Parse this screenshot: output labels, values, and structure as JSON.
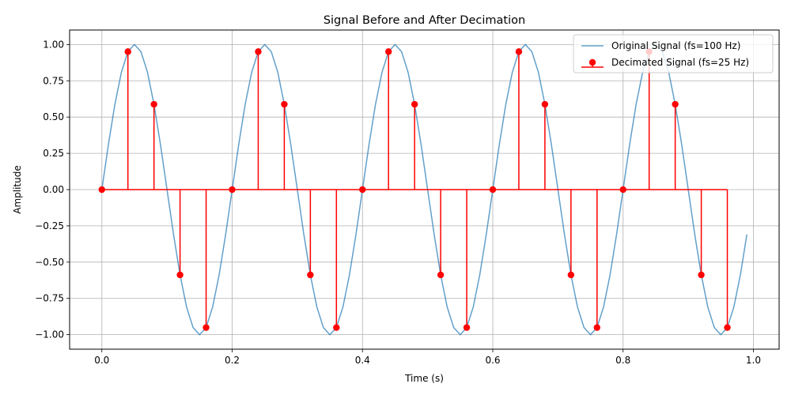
{
  "chart_data": {
    "type": "line",
    "title": "Signal Before and After Decimation",
    "xlabel": "Time (s)",
    "ylabel": "Amplitude",
    "xlim": [
      -0.0495,
      1.0395
    ],
    "ylim": [
      -1.1,
      1.1
    ],
    "x_ticks": [
      0.0,
      0.2,
      0.4,
      0.6,
      0.8,
      1.0
    ],
    "x_tick_labels": [
      "0.0",
      "0.2",
      "0.4",
      "0.6",
      "0.8",
      "1.0"
    ],
    "y_ticks": [
      -1.0,
      -0.75,
      -0.5,
      -0.25,
      0.0,
      0.25,
      0.5,
      0.75,
      1.0
    ],
    "y_tick_labels": [
      "−1.00",
      "−0.75",
      "−0.50",
      "−0.25",
      "0.00",
      "0.25",
      "0.50",
      "0.75",
      "1.00"
    ],
    "grid": true,
    "legend_position": "top-right",
    "series": [
      {
        "name": "Original Signal (fs=100 Hz)",
        "kind": "line",
        "color": "#1f77b4",
        "x": [
          0.0,
          0.01,
          0.02,
          0.03,
          0.04,
          0.05,
          0.06,
          0.07,
          0.08,
          0.09,
          0.1,
          0.11,
          0.12,
          0.13,
          0.14,
          0.15,
          0.16,
          0.17,
          0.18,
          0.19,
          0.2,
          0.21,
          0.22,
          0.23,
          0.24,
          0.25,
          0.26,
          0.27,
          0.28,
          0.29,
          0.3,
          0.31,
          0.32,
          0.33,
          0.34,
          0.35,
          0.36,
          0.37,
          0.38,
          0.39,
          0.4,
          0.41,
          0.42,
          0.43,
          0.44,
          0.45,
          0.46,
          0.47,
          0.48,
          0.49,
          0.5,
          0.51,
          0.52,
          0.53,
          0.54,
          0.55,
          0.56,
          0.57,
          0.58,
          0.59,
          0.6,
          0.61,
          0.62,
          0.63,
          0.64,
          0.65,
          0.66,
          0.67,
          0.68,
          0.69,
          0.7,
          0.71,
          0.72,
          0.73,
          0.74,
          0.75,
          0.76,
          0.77,
          0.78,
          0.79,
          0.8,
          0.81,
          0.82,
          0.83,
          0.84,
          0.85,
          0.86,
          0.87,
          0.88,
          0.89,
          0.9,
          0.91,
          0.92,
          0.93,
          0.94,
          0.95,
          0.96,
          0.97,
          0.98,
          0.99
        ],
        "y": [
          0.0,
          0.309,
          0.588,
          0.809,
          0.951,
          1.0,
          0.951,
          0.809,
          0.588,
          0.309,
          0.0,
          -0.309,
          -0.588,
          -0.809,
          -0.951,
          -1.0,
          -0.951,
          -0.809,
          -0.588,
          -0.309,
          0.0,
          0.309,
          0.588,
          0.809,
          0.951,
          1.0,
          0.951,
          0.809,
          0.588,
          0.309,
          0.0,
          -0.309,
          -0.588,
          -0.809,
          -0.951,
          -1.0,
          -0.951,
          -0.809,
          -0.588,
          -0.309,
          0.0,
          0.309,
          0.588,
          0.809,
          0.951,
          1.0,
          0.951,
          0.809,
          0.588,
          0.309,
          0.0,
          -0.309,
          -0.588,
          -0.809,
          -0.951,
          -1.0,
          -0.951,
          -0.809,
          -0.588,
          -0.309,
          0.0,
          0.309,
          0.588,
          0.809,
          0.951,
          1.0,
          0.951,
          0.809,
          0.588,
          0.309,
          0.0,
          -0.309,
          -0.588,
          -0.809,
          -0.951,
          -1.0,
          -0.951,
          -0.809,
          -0.588,
          -0.309,
          0.0,
          0.309,
          0.588,
          0.809,
          0.951,
          1.0,
          0.951,
          0.809,
          0.588,
          0.309,
          0.0,
          -0.309,
          -0.588,
          -0.809,
          -0.951,
          -1.0,
          -0.951,
          -0.809,
          -0.588,
          -0.309
        ]
      },
      {
        "name": "Decimated Signal (fs=25 Hz)",
        "kind": "stem",
        "color": "#ff0000",
        "x": [
          0.0,
          0.04,
          0.08,
          0.12,
          0.16,
          0.2,
          0.24,
          0.28,
          0.32,
          0.36,
          0.4,
          0.44,
          0.48,
          0.52,
          0.56,
          0.6,
          0.64,
          0.68,
          0.72,
          0.76,
          0.8,
          0.84,
          0.88,
          0.92,
          0.96
        ],
        "y": [
          0.0,
          0.951,
          0.588,
          -0.588,
          -0.951,
          0.0,
          0.951,
          0.588,
          -0.588,
          -0.951,
          0.0,
          0.951,
          0.588,
          -0.588,
          -0.951,
          0.0,
          0.951,
          0.588,
          -0.588,
          -0.951,
          0.0,
          0.951,
          0.588,
          -0.588,
          -0.951
        ]
      }
    ]
  }
}
